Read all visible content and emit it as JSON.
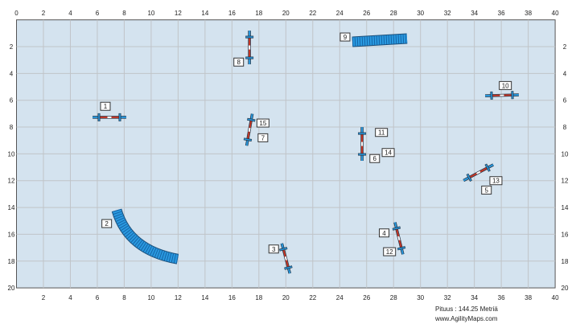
{
  "field": {
    "x_range": [
      0,
      40
    ],
    "y_range": [
      0,
      20
    ],
    "x_ticks_top": [
      "0",
      "2",
      "4",
      "6",
      "8",
      "10",
      "12",
      "14",
      "16",
      "18",
      "20",
      "22",
      "24",
      "26",
      "28",
      "30",
      "32",
      "34",
      "36",
      "38",
      "40"
    ],
    "x_ticks_bottom": [
      "2",
      "4",
      "6",
      "8",
      "10",
      "12",
      "14",
      "16",
      "18",
      "20",
      "22",
      "24",
      "26",
      "28",
      "30",
      "32",
      "34",
      "36",
      "38",
      "40"
    ],
    "y_ticks": [
      "2",
      "4",
      "6",
      "8",
      "10",
      "12",
      "14",
      "16",
      "18",
      "20"
    ],
    "colors": {
      "background": "#d4e3ef",
      "grid": "#c0c4c8",
      "bar_end": "#2a9ae0",
      "bar_mid": "#c8321e",
      "tunnel": "#2a9ae0"
    }
  },
  "jumps": [
    {
      "cx": 6.9,
      "cy": 7.27,
      "len": 2.5,
      "angle": 0,
      "labels": [
        {
          "text": "1",
          "x": 6.6,
          "y": 6.45
        }
      ]
    },
    {
      "cx": 17.3,
      "cy": 2.06,
      "len": 2.5,
      "angle": 90,
      "labels": [
        {
          "text": "8",
          "x": 16.5,
          "y": 3.15
        }
      ]
    },
    {
      "cx": 17.3,
      "cy": 8.2,
      "len": 2.4,
      "angle": 100,
      "labels": [
        {
          "text": "15",
          "x": 18.3,
          "y": 7.7
        },
        {
          "text": "7",
          "x": 18.3,
          "y": 8.8
        }
      ]
    },
    {
      "cx": 25.66,
      "cy": 9.26,
      "len": 2.5,
      "angle": 90,
      "labels": [
        {
          "text": "11",
          "x": 27.1,
          "y": 8.4
        },
        {
          "text": "14",
          "x": 27.6,
          "y": 9.9
        },
        {
          "text": "6",
          "x": 26.6,
          "y": 10.35
        }
      ]
    },
    {
      "cx": 34.3,
      "cy": 11.4,
      "len": 2.5,
      "angle": -28,
      "labels": [
        {
          "text": "13",
          "x": 35.6,
          "y": 12.0
        },
        {
          "text": "5",
          "x": 34.9,
          "y": 12.7
        }
      ]
    },
    {
      "cx": 28.4,
      "cy": 16.3,
      "len": 2.45,
      "angle": 76,
      "labels": [
        {
          "text": "4",
          "x": 27.3,
          "y": 15.9
        },
        {
          "text": "12",
          "x": 27.7,
          "y": 17.3
        }
      ]
    },
    {
      "cx": 20.0,
      "cy": 17.8,
      "len": 2.3,
      "angle": 75,
      "labels": [
        {
          "text": "3",
          "x": 19.1,
          "y": 17.1
        }
      ]
    },
    {
      "cx": 36.05,
      "cy": 5.63,
      "len": 2.5,
      "angle": -1.5,
      "labels": [
        {
          "text": "10",
          "x": 36.3,
          "y": 4.9
        }
      ]
    }
  ],
  "tunnels": [
    {
      "points": [
        [
          24.94,
          1.64
        ],
        [
          29.0,
          1.4
        ]
      ],
      "labels": [
        {
          "text": "9",
          "x": 24.4,
          "y": 1.28
        }
      ]
    },
    {
      "points": [
        [
          7.44,
          14.2
        ],
        [
          9.0,
          16.6
        ],
        [
          11.97,
          17.85
        ]
      ],
      "labels": [
        {
          "text": "2",
          "x": 6.7,
          "y": 15.2
        }
      ]
    }
  ],
  "footer": {
    "length": "Pituus : 144.25 Metriä",
    "site": "www.AgilityMaps.com"
  }
}
